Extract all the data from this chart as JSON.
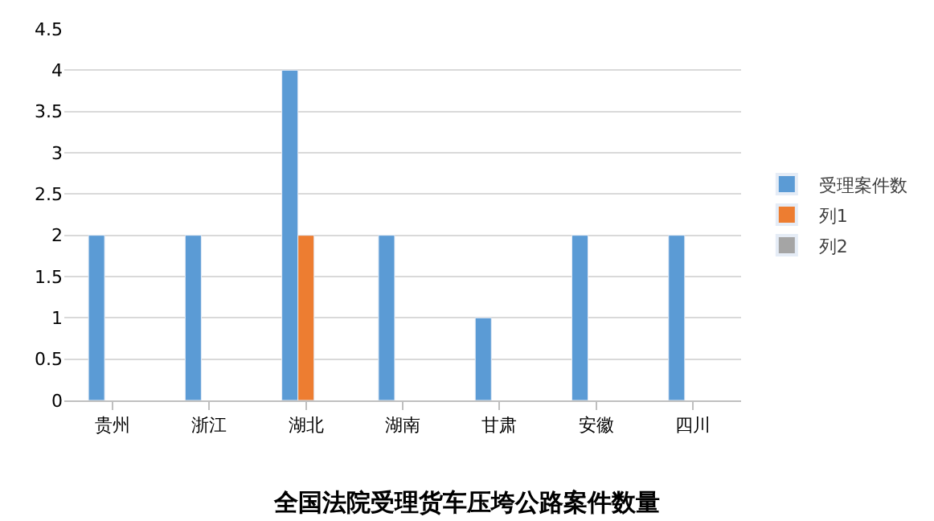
{
  "chart_data": {
    "type": "bar",
    "title": "全国法院受理货车压垮公路案件数量",
    "categories": [
      "贵州",
      "浙江",
      "湖北",
      "湖南",
      "甘肃",
      "安徽",
      "四川"
    ],
    "series": [
      {
        "name": "受理案件数",
        "color": "#5b9bd5",
        "values": [
          2,
          2,
          4,
          2,
          1,
          2,
          2
        ]
      },
      {
        "name": "列1",
        "color": "#ed7d31",
        "values": [
          null,
          null,
          2,
          null,
          null,
          null,
          null
        ]
      },
      {
        "name": "列2",
        "color": "#a5a5a5",
        "values": [
          null,
          null,
          null,
          null,
          null,
          null,
          null
        ]
      }
    ],
    "ylim": [
      0,
      4.5
    ],
    "yticks": [
      0,
      0.5,
      1,
      1.5,
      2,
      2.5,
      3,
      3.5,
      4,
      4.5
    ],
    "grid": "y",
    "legend": "right"
  }
}
